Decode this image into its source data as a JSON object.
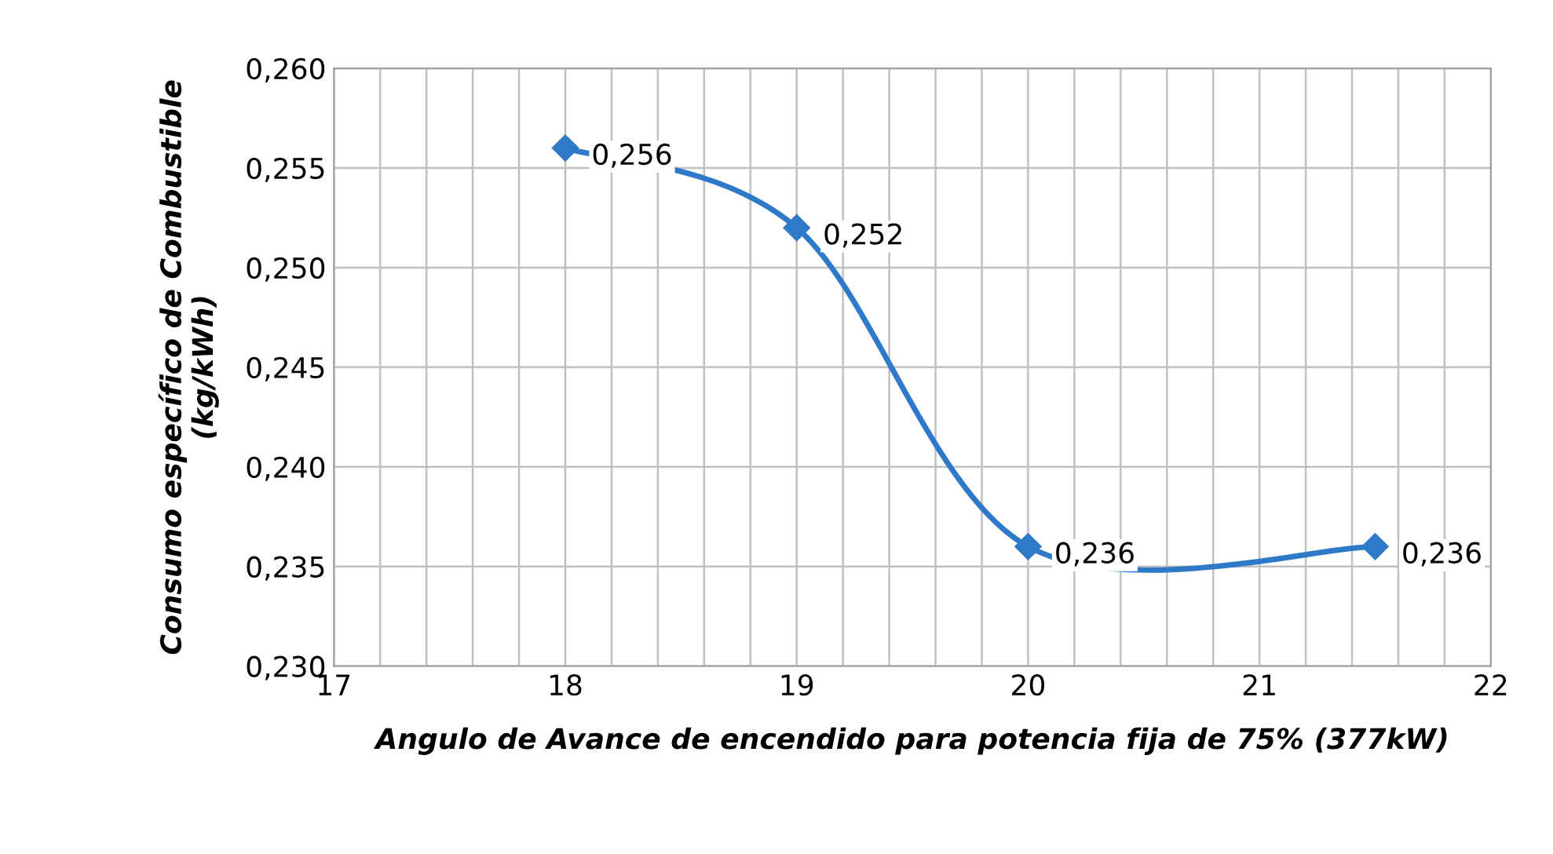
{
  "chart_data": {
    "type": "line",
    "xlabel": "Angulo de Avance de encendido para potencia fija de 75% (377kW)",
    "ylabel": "Consumo específico de Combustible\n(kg/kWh)",
    "x": [
      18,
      19,
      20,
      21.5
    ],
    "series": [
      {
        "color": "#2f7ac8",
        "values": [
          0.256,
          0.252,
          0.236,
          0.236
        ],
        "value_labels": [
          "0,256",
          "0,252",
          "0,236",
          "0,236"
        ]
      }
    ],
    "xlim": [
      17,
      22
    ],
    "xticks": [
      17,
      {
        "value": 17.2,
        "label": null
      },
      {
        "value": 17.4,
        "label": null
      },
      {
        "value": 17.6,
        "label": null
      },
      {
        "value": 17.8,
        "label": null
      },
      18,
      {
        "value": 18.2,
        "label": null
      },
      {
        "value": 18.4,
        "label": null
      },
      {
        "value": 18.6,
        "label": null
      },
      {
        "value": 18.8,
        "label": null
      },
      19,
      {
        "value": 19.2,
        "label": null
      },
      {
        "value": 19.4,
        "label": null
      },
      {
        "value": 19.6,
        "label": null
      },
      {
        "value": 19.8,
        "label": null
      },
      20,
      {
        "value": 20.2,
        "label": null
      },
      {
        "value": 20.4,
        "label": null
      },
      {
        "value": 20.6,
        "label": null
      },
      {
        "value": 20.8,
        "label": null
      },
      21,
      {
        "value": 21.2,
        "label": null
      },
      {
        "value": 21.4,
        "label": null
      },
      {
        "value": 21.6,
        "label": null
      },
      {
        "value": 21.8,
        "label": null
      },
      22
    ],
    "ylim": [
      0.23,
      0.26
    ],
    "yticks": [
      {
        "value": 0.23,
        "label": "0,230"
      },
      {
        "value": 0.235,
        "label": "0,235"
      },
      {
        "value": 0.24,
        "label": "0,240"
      },
      {
        "value": 0.245,
        "label": "0,245"
      },
      {
        "value": 0.25,
        "label": "0,250"
      },
      {
        "value": 0.255,
        "label": "0,255"
      },
      {
        "value": 0.26,
        "label": "0,260"
      }
    ],
    "grid": true,
    "marker": "diamond",
    "line_style": "solid",
    "legend": false
  }
}
